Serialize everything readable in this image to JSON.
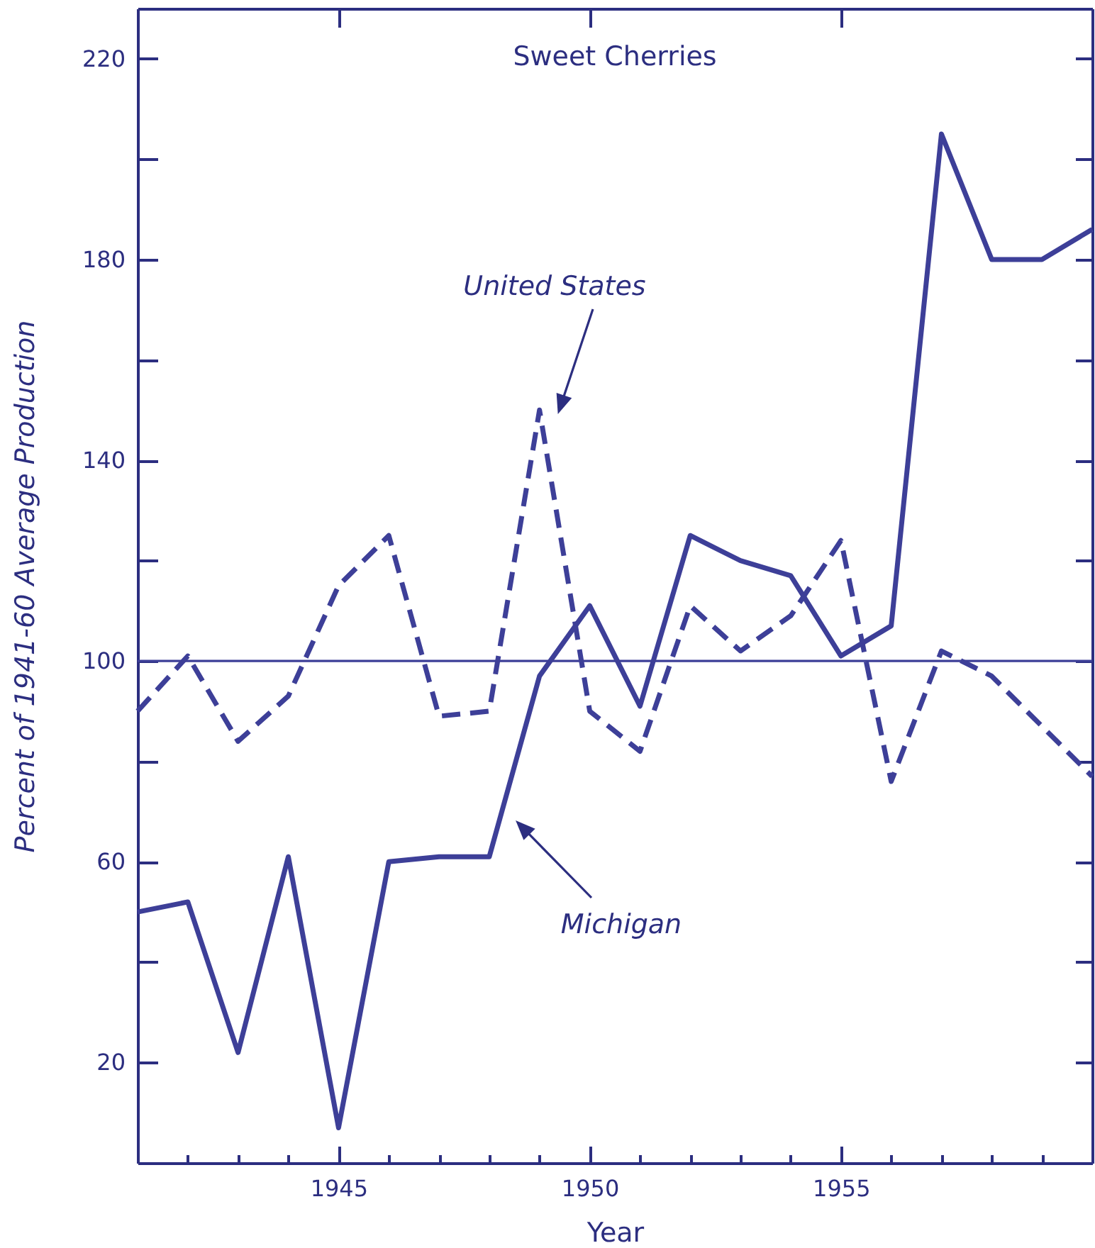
{
  "chart_data": {
    "type": "line",
    "title": "Sweet Cherries",
    "xlabel": "Year",
    "ylabel": "Percent of 1941-60 Average Production",
    "x": [
      1941,
      1942,
      1943,
      1944,
      1945,
      1946,
      1947,
      1948,
      1949,
      1950,
      1951,
      1952,
      1953,
      1954,
      1955,
      1956,
      1957,
      1958,
      1959,
      1960
    ],
    "series": [
      {
        "color": "#3d3f98",
        "line_style": "solid",
        "values": [
          50,
          52,
          22,
          61,
          7,
          60,
          61,
          61,
          97,
          111,
          91,
          125,
          120,
          117,
          101,
          107,
          205,
          180,
          180,
          186
        ]
      },
      {
        "color": "#3d3f98",
        "line_style": "dashed",
        "values": [
          90,
          101,
          84,
          93,
          115,
          125,
          89,
          90,
          150,
          90,
          82,
          111,
          102,
          109,
          124,
          76,
          102,
          97,
          87,
          77
        ]
      }
    ],
    "xlim": [
      1941,
      1960
    ],
    "xticks": [
      {
        "value": 1942,
        "label": null
      },
      {
        "value": 1943,
        "label": null
      },
      {
        "value": 1944,
        "label": null
      },
      1945,
      {
        "value": 1946,
        "label": null
      },
      {
        "value": 1947,
        "label": null
      },
      {
        "value": 1948,
        "label": null
      },
      {
        "value": 1949,
        "label": null
      },
      1950,
      {
        "value": 1951,
        "label": null
      },
      {
        "value": 1952,
        "label": null
      },
      {
        "value": 1953,
        "label": null
      },
      {
        "value": 1954,
        "label": null
      },
      1955,
      {
        "value": 1956,
        "label": null
      },
      {
        "value": 1957,
        "label": null
      },
      {
        "value": 1958,
        "label": null
      },
      {
        "value": 1959,
        "label": null
      }
    ],
    "ylim": [
      0,
      230
    ],
    "yticks": [
      20,
      {
        "value": 40,
        "label": null
      },
      60,
      {
        "value": 80,
        "label": null
      },
      100,
      {
        "value": 120,
        "label": null
      },
      140,
      {
        "value": 160,
        "label": null
      },
      180,
      {
        "value": 200,
        "label": null
      },
      220
    ],
    "ref_lines": [
      {
        "axis": "y",
        "value": 100,
        "color": "#3d3f98"
      }
    ],
    "annotations": [
      "United States",
      "Michigan"
    ]
  }
}
